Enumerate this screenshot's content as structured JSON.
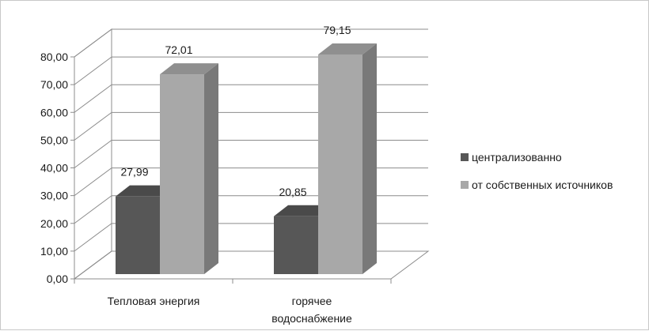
{
  "chart_data": {
    "type": "bar",
    "categories": [
      [
        "Тепловая энергия"
      ],
      [
        "горячее",
        "водоснабжение"
      ]
    ],
    "series": [
      {
        "name": "централизованно",
        "values": [
          27.99,
          20.85
        ],
        "color": "#575757"
      },
      {
        "name": "от собственных источников",
        "values": [
          72.01,
          79.15
        ],
        "color": "#a8a8a8"
      }
    ],
    "data_labels": [
      [
        "27,99",
        "20,85"
      ],
      [
        "72,01",
        "79,15"
      ]
    ],
    "ylim": [
      0,
      80
    ],
    "yticks": [
      "0,00",
      "10,00",
      "20,00",
      "30,00",
      "40,00",
      "50,00",
      "60,00",
      "70,00",
      "80,00"
    ],
    "grid": true,
    "three_d": true,
    "legend_position": "right"
  }
}
